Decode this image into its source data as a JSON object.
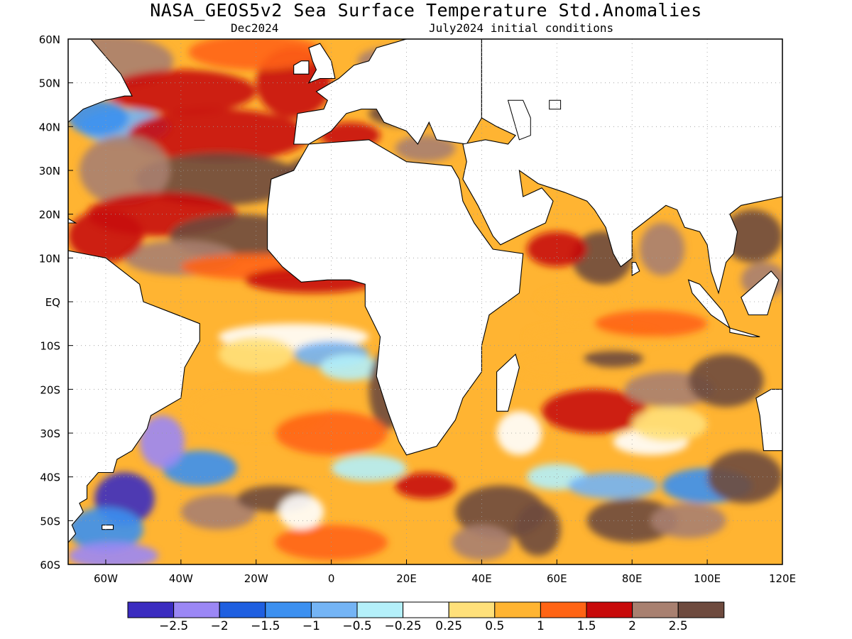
{
  "title": "NASA_GEOS5v2 Sea Surface Temperature Std.Anomalies",
  "subtitle_left": "Dec2024",
  "subtitle_right": "July2024 initial conditions",
  "map": {
    "lon_range": [
      -70,
      120
    ],
    "lat_range": [
      -60,
      60
    ],
    "lon_ticks": [
      {
        "value": -60,
        "label": "60W"
      },
      {
        "value": -40,
        "label": "40W"
      },
      {
        "value": -20,
        "label": "20W"
      },
      {
        "value": 0,
        "label": "0"
      },
      {
        "value": 20,
        "label": "20E"
      },
      {
        "value": 40,
        "label": "40E"
      },
      {
        "value": 60,
        "label": "60E"
      },
      {
        "value": 80,
        "label": "80E"
      },
      {
        "value": 100,
        "label": "100E"
      },
      {
        "value": 120,
        "label": "120E"
      }
    ],
    "lat_ticks": [
      {
        "value": 60,
        "label": "60N"
      },
      {
        "value": 50,
        "label": "50N"
      },
      {
        "value": 40,
        "label": "40N"
      },
      {
        "value": 30,
        "label": "30N"
      },
      {
        "value": 20,
        "label": "20N"
      },
      {
        "value": 10,
        "label": "10N"
      },
      {
        "value": 0,
        "label": "EQ"
      },
      {
        "value": -10,
        "label": "10S"
      },
      {
        "value": -20,
        "label": "20S"
      },
      {
        "value": -30,
        "label": "30S"
      },
      {
        "value": -40,
        "label": "40S"
      },
      {
        "value": -50,
        "label": "50S"
      },
      {
        "value": -60,
        "label": "60S"
      }
    ],
    "grid": "dotted"
  },
  "colorbar": {
    "colors": [
      "#3b2cc0",
      "#9b87f5",
      "#1f5fe0",
      "#3c90f0",
      "#74b4f5",
      "#b4f0fa",
      "#ffffff",
      "#ffe07a",
      "#ffb432",
      "#ff6414",
      "#c80a0a",
      "#a88070",
      "#6e4a3e"
    ],
    "labels": [
      "-2.5",
      "-2",
      "-1.5",
      "-1",
      "-0.5",
      "-0.25",
      "0.25",
      "0.5",
      "1",
      "1.5",
      "2",
      "2.5"
    ]
  }
}
